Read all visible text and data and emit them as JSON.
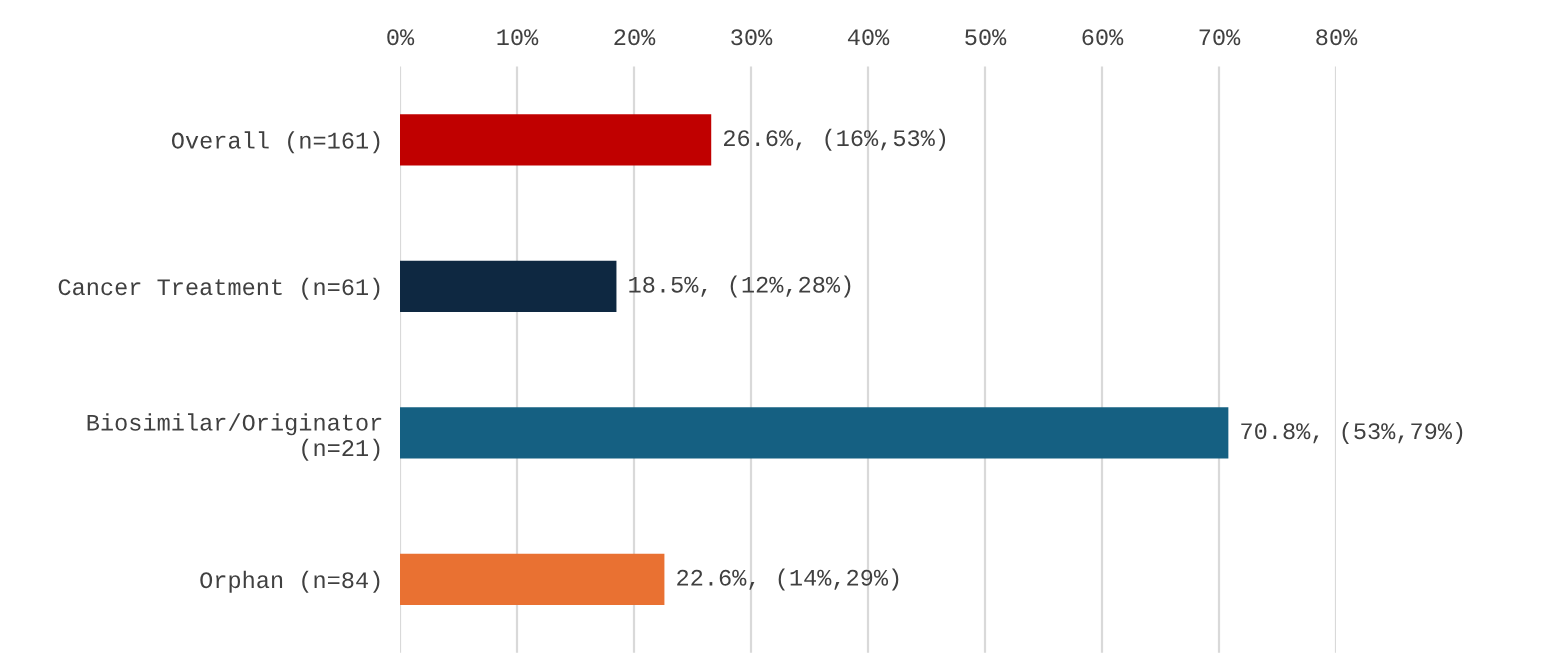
{
  "chart_data": {
    "type": "bar",
    "orientation": "horizontal",
    "categories": [
      "Overall (n=161)",
      "Cancer Treatment (n=61)",
      "Biosimilar/Originator\n(n=21)",
      "Orphan (n=84)"
    ],
    "values": [
      26.6,
      18.5,
      70.8,
      22.6
    ],
    "colors": [
      "#c00000",
      "#0e2841",
      "#156082",
      "#e97132"
    ],
    "value_labels": [
      "26.6%, (16%,53%)",
      "18.5%, (12%,28%)",
      "70.8%, (53%,79%)",
      "22.6%, (14%,29%)"
    ],
    "xlim": [
      0,
      80
    ],
    "xticks": [
      {
        "value": 0,
        "label": "0%"
      },
      {
        "value": 10,
        "label": "10%"
      },
      {
        "value": 20,
        "label": "20%"
      },
      {
        "value": 30,
        "label": "30%"
      },
      {
        "value": 40,
        "label": "40%"
      },
      {
        "value": 50,
        "label": "50%"
      },
      {
        "value": 60,
        "label": "60%"
      },
      {
        "value": 70,
        "label": "70%"
      },
      {
        "value": 80,
        "label": "80%"
      }
    ],
    "grid": "x"
  }
}
